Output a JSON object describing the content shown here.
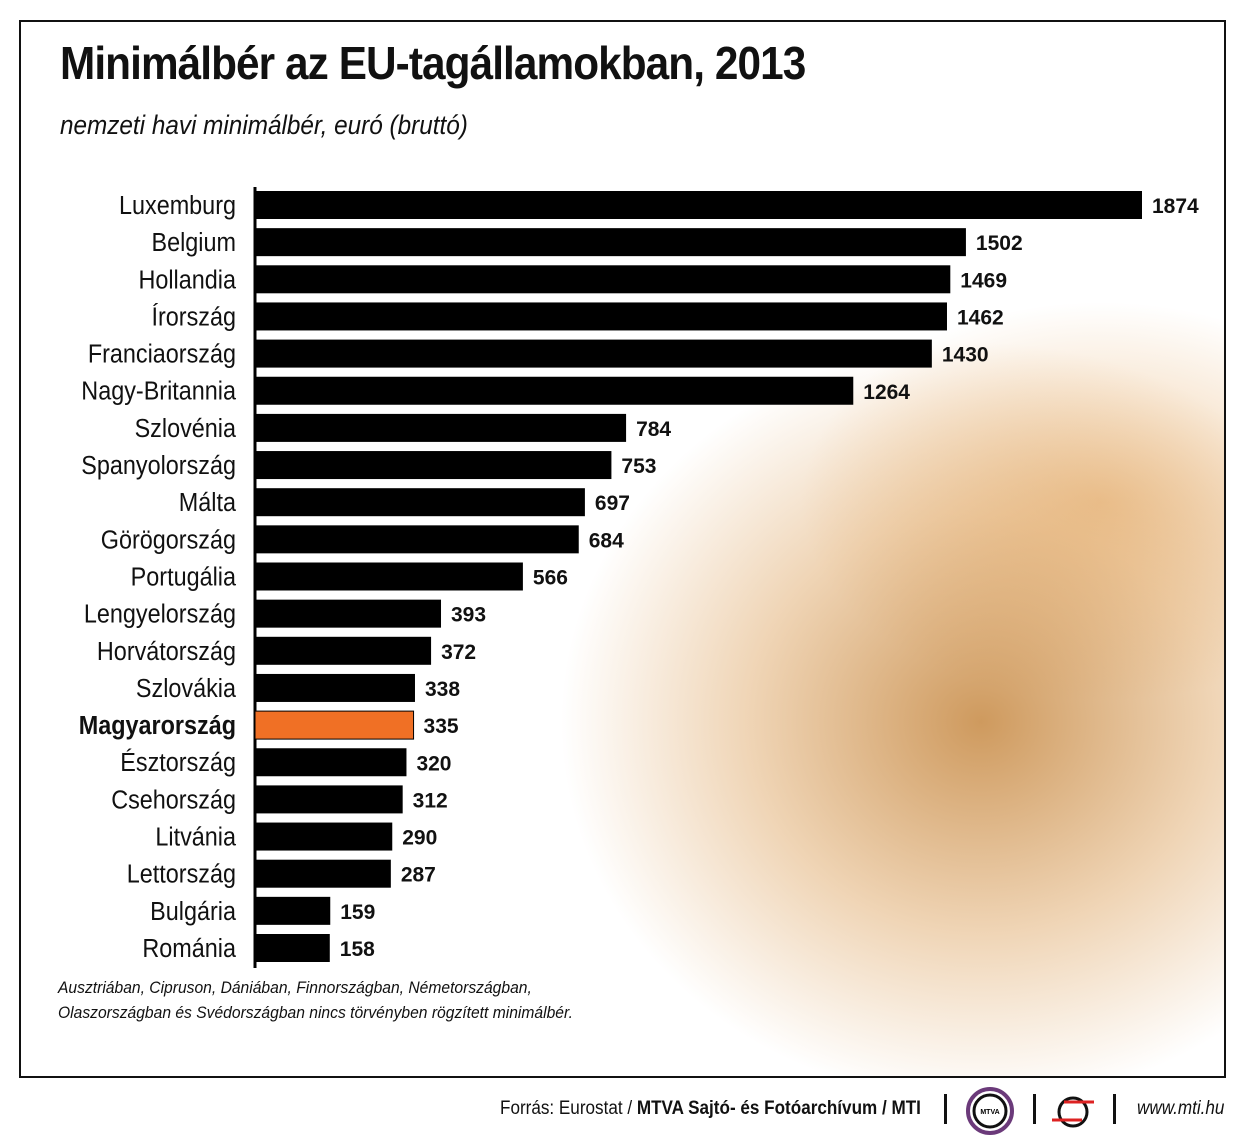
{
  "chart_data": {
    "type": "bar",
    "orientation": "horizontal",
    "title": "Minimálbér az EU-tagállamokban, 2013",
    "subtitle": "nemzeti havi minimálbér, euró (bruttó)",
    "categories": [
      "Luxemburg",
      "Belgium",
      "Hollandia",
      "Írország",
      "Franciaország",
      "Nagy-Britannia",
      "Szlovénia",
      "Spanyolország",
      "Málta",
      "Görögország",
      "Portugália",
      "Lengyelország",
      "Horvátország",
      "Szlovákia",
      "Magyarország",
      "Észtország",
      "Csehország",
      "Litvánia",
      "Lettország",
      "Bulgária",
      "Románia"
    ],
    "values": [
      1874,
      1502,
      1469,
      1462,
      1430,
      1264,
      784,
      753,
      697,
      684,
      566,
      393,
      372,
      338,
      335,
      320,
      312,
      290,
      287,
      159,
      158
    ],
    "highlight": "Magyarország",
    "colors": {
      "bar": "#000000",
      "highlight": "#f07025"
    },
    "xlim": [
      0,
      1874
    ],
    "grid": false,
    "data_labels": true
  },
  "note": [
    "Ausztriában, Cipruson, Dániában, Finnországban, Németországban,",
    "Olaszországban és Svédországban nincs törvényben rögzített minimálbér."
  ],
  "footer": {
    "source_prefix": "Forrás: Eurostat / ",
    "source_bold": "MTVA Sajtó- és Fotóarchívum / MTI",
    "mtva_logo_text": "MTVA",
    "url": "www.mti.hu"
  }
}
